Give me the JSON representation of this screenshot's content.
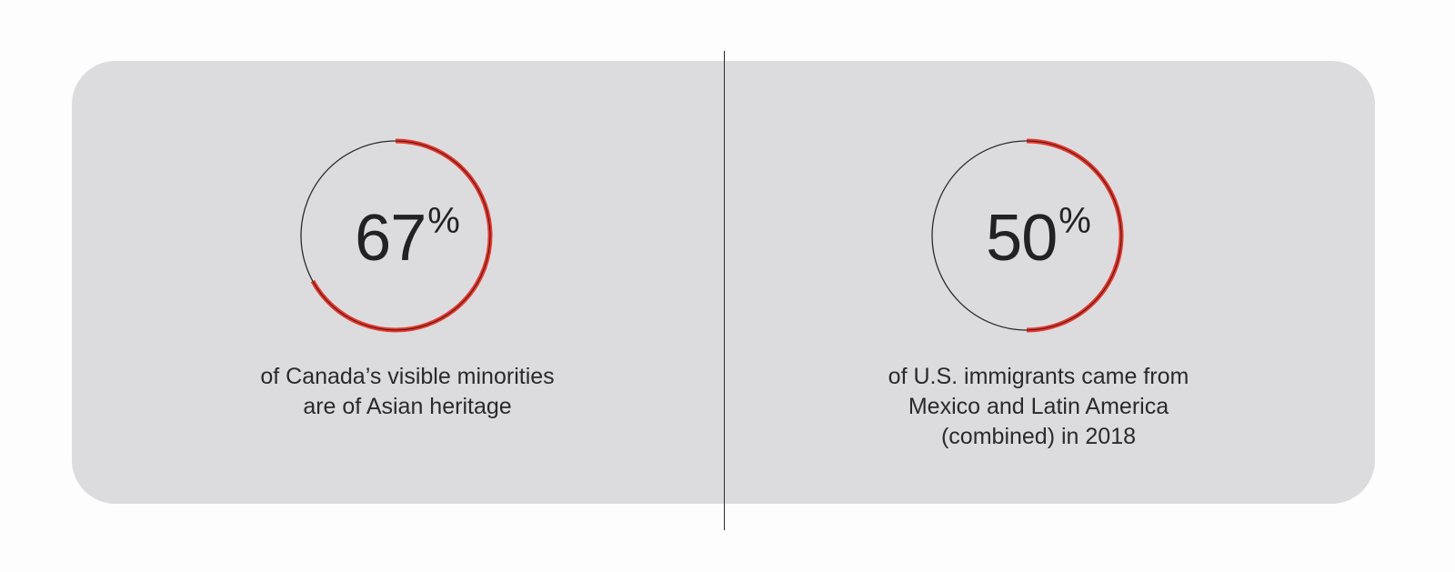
{
  "chart_data": [
    {
      "type": "pie",
      "value": 67,
      "value_text": "67",
      "unit": "%",
      "caption": [
        "of Canada’s visible minorities",
        "are of Asian heritage"
      ]
    },
    {
      "type": "pie",
      "value": 50,
      "value_text": "50",
      "unit": "%",
      "caption": [
        "of U.S. immigrants came from",
        "Mexico and Latin America",
        "(combined) in 2018"
      ]
    }
  ],
  "colors": {
    "accent": "#e8382d",
    "track": "#2b2b2b",
    "panel": "#dcdcdf",
    "text": "#222222"
  }
}
